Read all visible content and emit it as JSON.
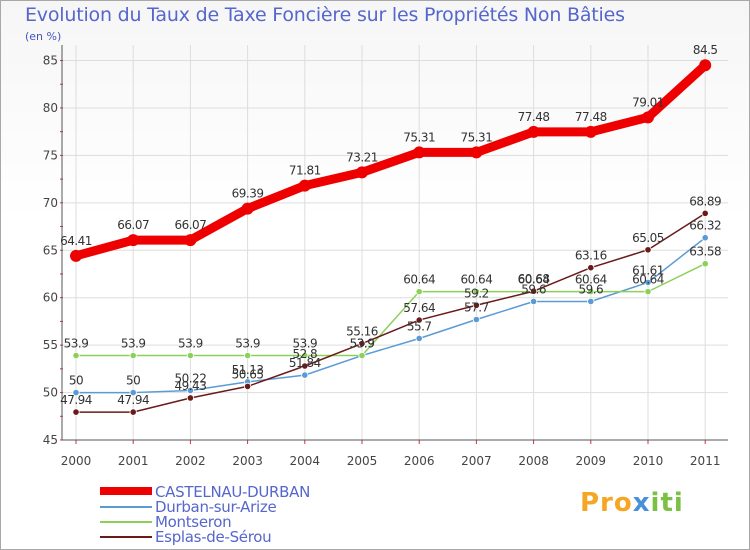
{
  "chart_data": {
    "type": "line",
    "title": "Evolution du Taux de Taxe Foncière sur les Propriétés Non Bâties",
    "ylabel": "(en %)",
    "categories": [
      "2000",
      "2001",
      "2002",
      "2003",
      "2004",
      "2005",
      "2006",
      "2007",
      "2008",
      "2009",
      "2010",
      "2011"
    ],
    "ylim": [
      45,
      85
    ],
    "yticks": [
      45,
      50,
      55,
      60,
      65,
      70,
      75,
      80,
      85
    ],
    "series": [
      {
        "name": "CASTELNAU-DURBAN",
        "color": "#ee0000",
        "values": [
          64.41,
          66.07,
          66.07,
          69.39,
          71.81,
          73.21,
          75.31,
          75.31,
          77.48,
          77.48,
          79.01,
          84.5
        ],
        "labels": [
          "64.41",
          "66.07",
          "66.07",
          "69.39",
          "71.81",
          "73.21",
          "75.31",
          "75.31",
          "77.48",
          "77.48",
          "79.01",
          "84.5"
        ]
      },
      {
        "name": "Durban-sur-Arize",
        "color": "#5b9bd5",
        "values": [
          50,
          50,
          50.22,
          51.13,
          51.84,
          53.9,
          55.7,
          57.7,
          59.6,
          59.6,
          61.61,
          66.32
        ],
        "labels": [
          "50",
          "50",
          "50.22",
          "51.13",
          "51.84",
          "53.9",
          "55.7",
          "57.7",
          "59.6",
          "59.6",
          "61.61",
          "66.32"
        ]
      },
      {
        "name": "Montseron",
        "color": "#8cd05a",
        "values": [
          53.9,
          53.9,
          53.9,
          53.9,
          53.9,
          53.9,
          60.64,
          60.64,
          60.64,
          60.64,
          60.64,
          63.58
        ],
        "labels": [
          "53.9",
          "53.9",
          "53.9",
          "53.9",
          "53.9",
          "53.9",
          "60.64",
          "60.64",
          "60.64",
          "60.64",
          "60.64",
          "63.58"
        ]
      },
      {
        "name": "Esplas-de-Sérou",
        "color": "#6b1a1a",
        "values": [
          47.94,
          47.94,
          49.43,
          50.65,
          52.8,
          55.16,
          57.64,
          59.2,
          60.68,
          63.16,
          65.05,
          68.89
        ],
        "labels": [
          "47.94",
          "47.94",
          "49.43",
          "50.65",
          "52.8",
          "55.16",
          "57.64",
          "59.2",
          "60.68",
          "63.16",
          "65.05",
          "68.89"
        ]
      }
    ],
    "legend": "bottom-left"
  },
  "logo": {
    "p1": "Pro",
    "p2": "x",
    "p3": "iti"
  }
}
